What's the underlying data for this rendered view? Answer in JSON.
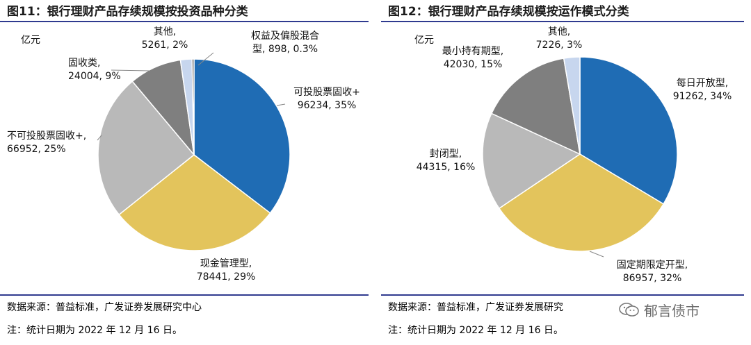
{
  "chart_data": [
    {
      "type": "pie",
      "title": "图11：银行理财产品存续规模按投资品种分类",
      "unit": "亿元",
      "series": [
        {
          "name": "可投股票固收+",
          "values": [
            96234
          ],
          "share": "35%",
          "color": "#1f6cb4",
          "label_lines": [
            "可投股票固收+",
            "96234, 35%"
          ]
        },
        {
          "name": "现金管理型",
          "values": [
            78441
          ],
          "share": "29%",
          "color": "#e3c45c",
          "label_lines": [
            "现金管理型,",
            "78441, 29%"
          ]
        },
        {
          "name": "不可投股票固收+",
          "values": [
            66952
          ],
          "share": "25%",
          "color": "#b9b9b9",
          "label_lines": [
            "不可投股票固收+,",
            "66952, 25%"
          ]
        },
        {
          "name": "固收类",
          "values": [
            24004
          ],
          "share": "9%",
          "color": "#7f7f7f",
          "label_lines": [
            "固收类,",
            "24004, 9%"
          ]
        },
        {
          "name": "其他",
          "values": [
            5261
          ],
          "share": "2%",
          "color": "#c7d6ee",
          "label_lines": [
            "其他,",
            "5261, 2%"
          ]
        },
        {
          "name": "权益及偏股混合型",
          "values": [
            898
          ],
          "share": "0.3%",
          "color": "#555555",
          "label_lines": [
            "权益及偏股混合",
            "型, 898, 0.3%"
          ]
        }
      ]
    },
    {
      "type": "pie",
      "title": "图12：银行理财产品存续规模按运作模式分类",
      "unit": "亿元",
      "series": [
        {
          "name": "每日开放型",
          "values": [
            91262
          ],
          "share": "34%",
          "color": "#1f6cb4",
          "label_lines": [
            "每日开放型,",
            "91262, 34%"
          ]
        },
        {
          "name": "固定期限定开型",
          "values": [
            86957
          ],
          "share": "32%",
          "color": "#e3c45c",
          "label_lines": [
            "固定期限定开型,",
            "86957, 32%"
          ]
        },
        {
          "name": "封闭型",
          "values": [
            44315
          ],
          "share": "16%",
          "color": "#b9b9b9",
          "label_lines": [
            "封闭型,",
            "44315, 16%"
          ]
        },
        {
          "name": "最小持有期型",
          "values": [
            42030
          ],
          "share": "15%",
          "color": "#7f7f7f",
          "label_lines": [
            "最小持有期型,",
            "42030, 15%"
          ]
        },
        {
          "name": "其他",
          "values": [
            7226
          ],
          "share": "3%",
          "color": "#c7d6ee",
          "label_lines": [
            "其他,",
            "7226, 3%"
          ]
        }
      ]
    }
  ],
  "footer": {
    "left_source": "数据来源：普益标准，广发证券发展研究中心",
    "right_source": "数据来源：普益标准，广发证券发展研究",
    "left_note": "注：统计日期为 2022 年 12 月 16 日。",
    "right_note": "注：统计日期为 2022 年 12 月 16 日。",
    "watermark": "郁言债市"
  }
}
